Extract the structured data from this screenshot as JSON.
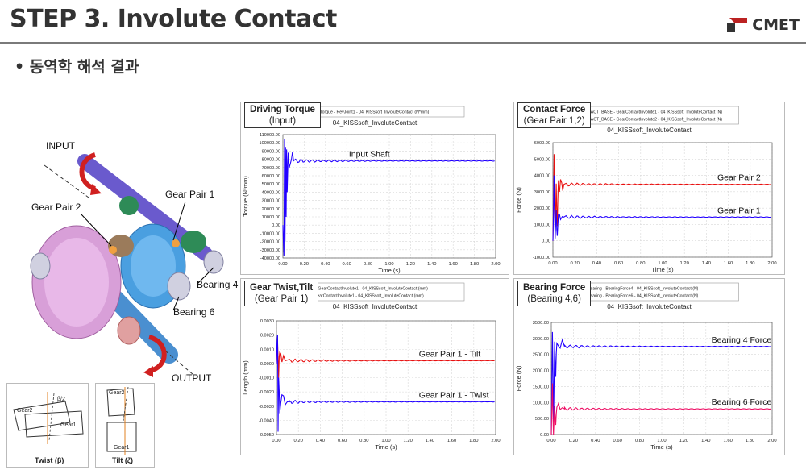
{
  "header": {
    "title": "STEP 3. Involute Contact",
    "logo_text": "CMET",
    "bullet": "• 동역학 해석 결과"
  },
  "colors": {
    "blue": "#2200ff",
    "red": "#e81010",
    "magenta": "#ee1166"
  },
  "diagram": {
    "input_label": "INPUT",
    "output_label": "OUTPUT",
    "gear_pair_1": "Gear Pair 1",
    "gear_pair_2": "Gear Pair 2",
    "bearing_4": "Bearing 4",
    "bearing_6": "Bearing 6",
    "twist_caption": "Twist (β)",
    "tilt_caption": "Tilt (ζ)",
    "twist_gear2": "Gear2",
    "twist_gear1": "Gear1",
    "twist_angle": "β/2",
    "tilt_gear2": "Gear2",
    "tilt_gear1": "Gear1"
  },
  "panels": {
    "torque": {
      "tag_title": "Driving Torque",
      "tag_sub": "(Input)",
      "legend": [
        "Driving_Torque - RevJoint1 - 04_KISSsoft_InvoluteContact (N*mm)"
      ],
      "subtitle": "04_KISSsoft_InvoluteContact",
      "annotation": "Input Shaft"
    },
    "contact": {
      "tag_title": "Contact Force",
      "tag_sub": "(Gear Pair 1,2)",
      "legend": [
        "CONTACT_BASE - GearContactInvolute1 - 04_KISSsoft_InvoluteContact (N)",
        "CONTACT_BASE - GearContactInvolute2 - 04_KISSsoft_InvoluteContact (N)"
      ],
      "subtitle": "04_KISSsoft_InvoluteContact",
      "annotations": [
        "Gear Pair 2",
        "Gear Pair 1"
      ]
    },
    "twist": {
      "tag_title": "Gear Twist,Tilt",
      "tag_sub": "(Gear Pair 1)",
      "legend": [
        "Twist - GearContactInvolute1 - 04_KISSsoft_InvoluteContact (mm)",
        "Tilt - GearContactInvolute1 - 04_KISSsoft_InvoluteContact (mm)"
      ],
      "subtitle": "04_KISSsoft_InvoluteContact",
      "annotations": [
        "Gear Pair 1 - Tilt",
        "Gear Pair 1 - Twist"
      ]
    },
    "bearing": {
      "tag_title": "Bearing Force",
      "tag_sub": "(Bearing 4,6)",
      "legend": [
        "FM_Bearing - BearingForce4 - 04_KISSsoft_InvoluteContact (N)",
        "FM_Bearing - BearingForce6 - 04_KISSsoft_InvoluteContact (N)"
      ],
      "subtitle": "04_KISSsoft_InvoluteContact",
      "annotations": [
        "Bearing 4 Force",
        "Bearing 6 Force"
      ]
    }
  },
  "chart_data": [
    {
      "type": "line",
      "xlabel": "Time (s)",
      "ylabel": "Torque (N*mm)",
      "xlim": [
        0,
        2
      ],
      "ylim": [
        -40000,
        110000
      ],
      "xticks": [
        "0.00",
        "0.20",
        "0.40",
        "0.60",
        "0.80",
        "1.00",
        "1.20",
        "1.40",
        "1.60",
        "1.80",
        "2.00"
      ],
      "yticks": [
        "-40000.00",
        "-30000.00",
        "-20000.00",
        "-10000.00",
        "0.00",
        "10000.00",
        "20000.00",
        "30000.00",
        "40000.00",
        "50000.00",
        "60000.00",
        "70000.00",
        "80000.00",
        "90000.00",
        "100000.00",
        "110000.00"
      ],
      "series": [
        {
          "name": "Driving_Torque - RevJoint1 - 04_KISSsoft_InvoluteContact (N*mm)",
          "color": "#2200ff",
          "steady": 78000,
          "transient": [
            [
              0,
              0
            ],
            [
              0.01,
              -38000
            ],
            [
              0.015,
              105000
            ],
            [
              0.02,
              -20000
            ],
            [
              0.025,
              95000
            ],
            [
              0.03,
              10000
            ],
            [
              0.035,
              92000
            ],
            [
              0.04,
              40000
            ],
            [
              0.05,
              88000
            ],
            [
              0.06,
              70000
            ],
            [
              0.08,
              80000
            ],
            [
              0.1,
              78000
            ],
            [
              2.0,
              78000
            ]
          ]
        }
      ]
    },
    {
      "type": "line",
      "xlabel": "Time (s)",
      "ylabel": "Force (N)",
      "xlim": [
        0,
        2
      ],
      "ylim": [
        -1000,
        6000
      ],
      "xticks": [
        "0.00",
        "0.20",
        "0.40",
        "0.60",
        "0.80",
        "1.00",
        "1.20",
        "1.40",
        "1.60",
        "1.80",
        "2.00"
      ],
      "yticks": [
        "-1000.00",
        "0.00",
        "1000.00",
        "2000.00",
        "3000.00",
        "4000.00",
        "5000.00",
        "6000.00"
      ],
      "series": [
        {
          "name": "CONTACT_BASE - GearContactInvolute2 - 04_KISSsoft_InvoluteContact (N)",
          "color": "#e81010",
          "steady": 3450,
          "transient": [
            [
              0,
              0
            ],
            [
              0.01,
              5300
            ],
            [
              0.02,
              200
            ],
            [
              0.03,
              3500
            ],
            [
              0.04,
              900
            ],
            [
              0.05,
              3700
            ],
            [
              0.06,
              3000
            ],
            [
              0.08,
              3550
            ],
            [
              0.1,
              3450
            ],
            [
              2.0,
              3450
            ]
          ]
        },
        {
          "name": "CONTACT_BASE - GearContactInvolute1 - 04_KISSsoft_InvoluteContact (N)",
          "color": "#2200ff",
          "steady": 1450,
          "transient": [
            [
              0,
              0
            ],
            [
              0.01,
              4000
            ],
            [
              0.02,
              100
            ],
            [
              0.03,
              1900
            ],
            [
              0.04,
              300
            ],
            [
              0.05,
              1600
            ],
            [
              0.07,
              1300
            ],
            [
              0.1,
              1450
            ],
            [
              2.0,
              1450
            ]
          ]
        }
      ]
    },
    {
      "type": "line",
      "xlabel": "Time (s)",
      "ylabel": "Length (mm)",
      "xlim": [
        0,
        2
      ],
      "ylim": [
        -0.005,
        0.003
      ],
      "xticks": [
        "0.00",
        "0.20",
        "0.40",
        "0.60",
        "0.80",
        "1.00",
        "1.20",
        "1.40",
        "1.60",
        "1.80",
        "2.00"
      ],
      "yticks": [
        "-0.0050",
        "-0.0040",
        "-0.0030",
        "-0.0020",
        "-0.0010",
        "0.0000",
        "0.0010",
        "0.0020",
        "0.0030"
      ],
      "series": [
        {
          "name": "Tilt - GearContactInvolute1 - 04_KISSsoft_InvoluteContact (mm)",
          "color": "#e81010",
          "steady": 0.0002,
          "transient": [
            [
              0,
              0
            ],
            [
              0.01,
              0.0015
            ],
            [
              0.02,
              -0.001
            ],
            [
              0.03,
              0.0008
            ],
            [
              0.05,
              0.0001
            ],
            [
              0.08,
              0.0002
            ],
            [
              2.0,
              0.0002
            ]
          ]
        },
        {
          "name": "Twist - GearContactInvolute1 - 04_KISSsoft_InvoluteContact (mm)",
          "color": "#2200ff",
          "steady": -0.0027,
          "transient": [
            [
              0,
              0
            ],
            [
              0.01,
              0.002
            ],
            [
              0.015,
              -0.0048
            ],
            [
              0.02,
              -0.001
            ],
            [
              0.03,
              -0.0035
            ],
            [
              0.05,
              -0.0022
            ],
            [
              0.08,
              -0.0029
            ],
            [
              0.12,
              -0.0027
            ],
            [
              2.0,
              -0.0027
            ]
          ]
        }
      ]
    },
    {
      "type": "line",
      "xlabel": "Time (s)",
      "ylabel": "Force (N)",
      "xlim": [
        0,
        2
      ],
      "ylim": [
        0,
        3500
      ],
      "xticks": [
        "0.00",
        "0.20",
        "0.40",
        "0.60",
        "0.80",
        "1.00",
        "1.20",
        "1.40",
        "1.60",
        "1.80",
        "2.00"
      ],
      "yticks": [
        "0.00",
        "500.00",
        "1000.00",
        "1500.00",
        "2000.00",
        "2500.00",
        "3000.00",
        "3500.00"
      ],
      "series": [
        {
          "name": "FM_Bearing - BearingForce4 - 04_KISSsoft_InvoluteContact (N)",
          "color": "#2200ff",
          "steady": 2750,
          "transient": [
            [
              0,
              0
            ],
            [
              0.01,
              3200
            ],
            [
              0.02,
              200
            ],
            [
              0.03,
              2900
            ],
            [
              0.04,
              1800
            ],
            [
              0.05,
              2850
            ],
            [
              0.08,
              2700
            ],
            [
              0.12,
              2750
            ],
            [
              2.0,
              2750
            ]
          ]
        },
        {
          "name": "FM_Bearing - BearingForce6 - 04_KISSsoft_InvoluteContact (N)",
          "color": "#ee1166",
          "steady": 800,
          "transient": [
            [
              0,
              0
            ],
            [
              0.01,
              1600
            ],
            [
              0.02,
              0
            ],
            [
              0.03,
              900
            ],
            [
              0.04,
              300
            ],
            [
              0.05,
              850
            ],
            [
              0.08,
              780
            ],
            [
              0.12,
              800
            ],
            [
              2.0,
              800
            ]
          ]
        }
      ]
    }
  ]
}
